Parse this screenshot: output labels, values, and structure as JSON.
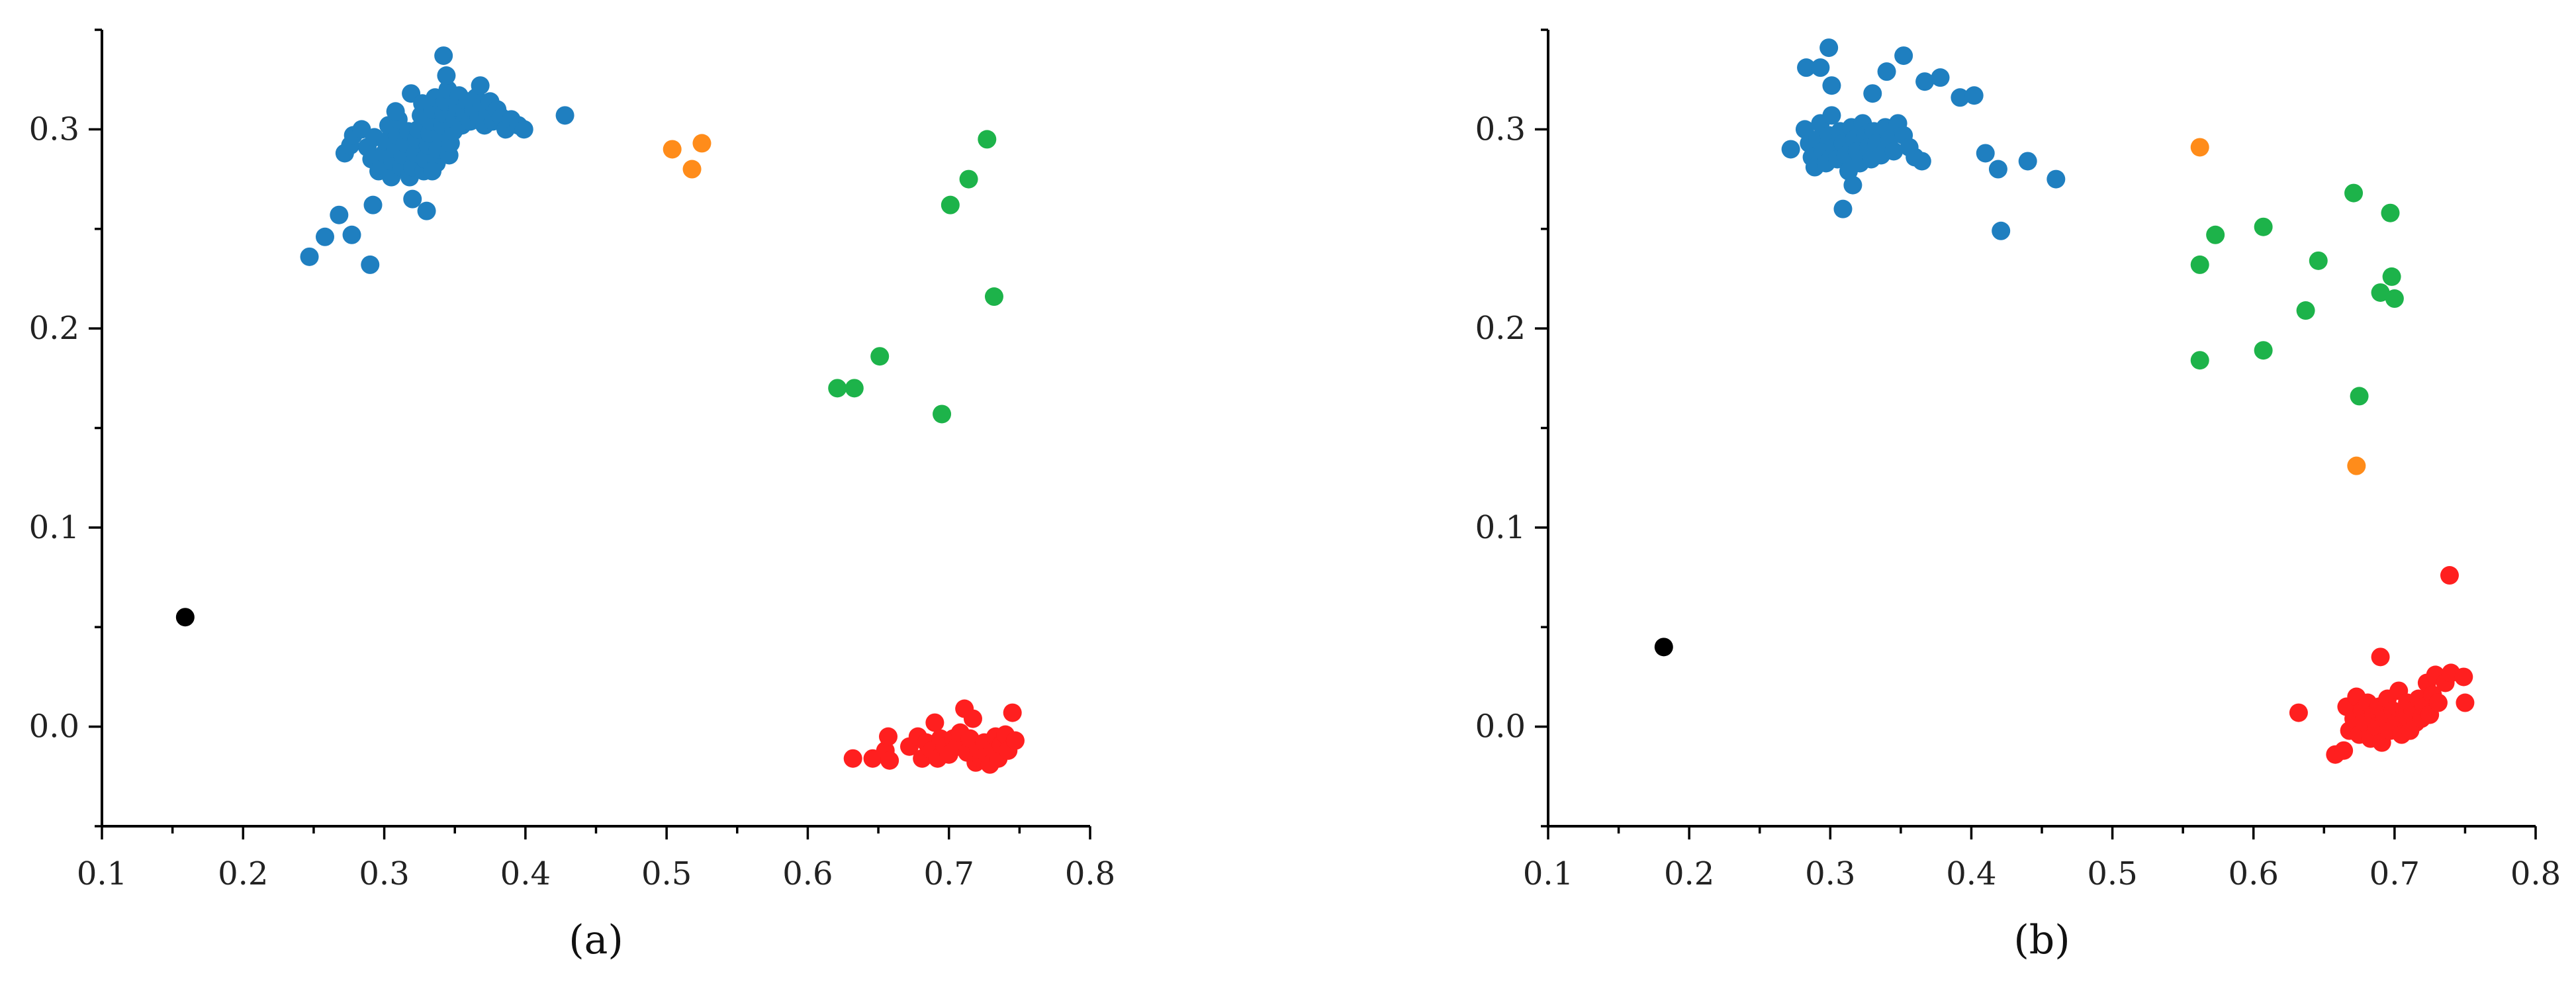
{
  "chart_data": [
    {
      "type": "scatter",
      "panel_label": "(a)",
      "xlim": [
        0.1,
        0.8
      ],
      "ylim": [
        -0.05,
        0.35
      ],
      "x_ticks": [
        "0.1",
        "0.2",
        "0.3",
        "0.4",
        "0.5",
        "0.6",
        "0.7",
        "0.8"
      ],
      "y_ticks": [
        "0.0",
        "0.1",
        "0.2",
        "0.3"
      ],
      "series": [
        {
          "color": "#1f7fc0",
          "points": [
            [
              0.247,
              0.236
            ],
            [
              0.258,
              0.246
            ],
            [
              0.268,
              0.257
            ],
            [
              0.277,
              0.247
            ],
            [
              0.29,
              0.232
            ],
            [
              0.272,
              0.288
            ],
            [
              0.276,
              0.292
            ],
            [
              0.278,
              0.297
            ],
            [
              0.284,
              0.3
            ],
            [
              0.288,
              0.291
            ],
            [
              0.291,
              0.285
            ],
            [
              0.293,
              0.296
            ],
            [
              0.296,
              0.279
            ],
            [
              0.298,
              0.282
            ],
            [
              0.3,
              0.288
            ],
            [
              0.301,
              0.294
            ],
            [
              0.303,
              0.302
            ],
            [
              0.305,
              0.276
            ],
            [
              0.306,
              0.284
            ],
            [
              0.308,
              0.29
            ],
            [
              0.309,
              0.297
            ],
            [
              0.31,
              0.305
            ],
            [
              0.312,
              0.281
            ],
            [
              0.313,
              0.287
            ],
            [
              0.315,
              0.293
            ],
            [
              0.317,
              0.299
            ],
            [
              0.318,
              0.276
            ],
            [
              0.319,
              0.318
            ],
            [
              0.32,
              0.281
            ],
            [
              0.322,
              0.288
            ],
            [
              0.323,
              0.295
            ],
            [
              0.324,
              0.3
            ],
            [
              0.326,
              0.307
            ],
            [
              0.327,
              0.313
            ],
            [
              0.328,
              0.279
            ],
            [
              0.329,
              0.285
            ],
            [
              0.331,
              0.292
            ],
            [
              0.332,
              0.298
            ],
            [
              0.333,
              0.304
            ],
            [
              0.334,
              0.31
            ],
            [
              0.336,
              0.316
            ],
            [
              0.337,
              0.283
            ],
            [
              0.338,
              0.29
            ],
            [
              0.34,
              0.296
            ],
            [
              0.341,
              0.302
            ],
            [
              0.342,
              0.308
            ],
            [
              0.343,
              0.314
            ],
            [
              0.345,
              0.32
            ],
            [
              0.346,
              0.287
            ],
            [
              0.347,
              0.293
            ],
            [
              0.349,
              0.299
            ],
            [
              0.35,
              0.305
            ],
            [
              0.352,
              0.311
            ],
            [
              0.353,
              0.317
            ],
            [
              0.355,
              0.302
            ],
            [
              0.357,
              0.308
            ],
            [
              0.359,
              0.314
            ],
            [
              0.361,
              0.304
            ],
            [
              0.363,
              0.31
            ],
            [
              0.365,
              0.316
            ],
            [
              0.367,
              0.306
            ],
            [
              0.369,
              0.312
            ],
            [
              0.371,
              0.302
            ],
            [
              0.373,
              0.308
            ],
            [
              0.375,
              0.314
            ],
            [
              0.377,
              0.304
            ],
            [
              0.38,
              0.31
            ],
            [
              0.383,
              0.306
            ],
            [
              0.386,
              0.3
            ],
            [
              0.39,
              0.305
            ],
            [
              0.395,
              0.302
            ],
            [
              0.399,
              0.3
            ],
            [
              0.342,
              0.337
            ],
            [
              0.344,
              0.327
            ],
            [
              0.368,
              0.322
            ],
            [
              0.292,
              0.262
            ],
            [
              0.33,
              0.259
            ],
            [
              0.32,
              0.265
            ],
            [
              0.428,
              0.307
            ],
            [
              0.308,
              0.309
            ],
            [
              0.334,
              0.279
            ]
          ]
        },
        {
          "color": "#ff8c1a",
          "points": [
            [
              0.504,
              0.29
            ],
            [
              0.518,
              0.28
            ],
            [
              0.525,
              0.293
            ]
          ]
        },
        {
          "color": "#1db34a",
          "points": [
            [
              0.727,
              0.295
            ],
            [
              0.714,
              0.275
            ],
            [
              0.701,
              0.262
            ],
            [
              0.732,
              0.216
            ],
            [
              0.651,
              0.186
            ],
            [
              0.621,
              0.17
            ],
            [
              0.633,
              0.17
            ],
            [
              0.695,
              0.157
            ]
          ]
        },
        {
          "color": "#ff1f1f",
          "points": [
            [
              0.632,
              -0.016
            ],
            [
              0.646,
              -0.016
            ],
            [
              0.655,
              -0.012
            ],
            [
              0.657,
              -0.005
            ],
            [
              0.658,
              -0.017
            ],
            [
              0.672,
              -0.01
            ],
            [
              0.678,
              -0.005
            ],
            [
              0.681,
              -0.016
            ],
            [
              0.684,
              -0.008
            ],
            [
              0.688,
              -0.012
            ],
            [
              0.69,
              0.002
            ],
            [
              0.692,
              -0.016
            ],
            [
              0.694,
              -0.006
            ],
            [
              0.697,
              -0.01
            ],
            [
              0.7,
              -0.014
            ],
            [
              0.703,
              -0.006
            ],
            [
              0.706,
              -0.01
            ],
            [
              0.708,
              -0.003
            ],
            [
              0.711,
              0.009
            ],
            [
              0.713,
              -0.013
            ],
            [
              0.715,
              -0.006
            ],
            [
              0.717,
              0.004
            ],
            [
              0.719,
              -0.018
            ],
            [
              0.721,
              -0.012
            ],
            [
              0.723,
              -0.016
            ],
            [
              0.725,
              -0.008
            ],
            [
              0.727,
              -0.014
            ],
            [
              0.729,
              -0.019
            ],
            [
              0.731,
              -0.011
            ],
            [
              0.733,
              -0.005
            ],
            [
              0.735,
              -0.016
            ],
            [
              0.737,
              -0.009
            ],
            [
              0.74,
              -0.004
            ],
            [
              0.742,
              -0.012
            ],
            [
              0.745,
              0.007
            ],
            [
              0.747,
              -0.007
            ]
          ]
        },
        {
          "color": "#000000",
          "points": [
            [
              0.159,
              0.055
            ]
          ]
        }
      ]
    },
    {
      "type": "scatter",
      "panel_label": "(b)",
      "xlim": [
        0.1,
        0.8
      ],
      "ylim": [
        -0.05,
        0.35
      ],
      "x_ticks": [
        "0.1",
        "0.2",
        "0.3",
        "0.4",
        "0.5",
        "0.6",
        "0.7",
        "0.8"
      ],
      "y_ticks": [
        "0.0",
        "0.1",
        "0.2",
        "0.3"
      ],
      "series": [
        {
          "color": "#1f7fc0",
          "points": [
            [
              0.299,
              0.341
            ],
            [
              0.283,
              0.331
            ],
            [
              0.293,
              0.331
            ],
            [
              0.301,
              0.322
            ],
            [
              0.352,
              0.337
            ],
            [
              0.34,
              0.329
            ],
            [
              0.33,
              0.318
            ],
            [
              0.367,
              0.324
            ],
            [
              0.378,
              0.326
            ],
            [
              0.392,
              0.316
            ],
            [
              0.402,
              0.317
            ],
            [
              0.272,
              0.29
            ],
            [
              0.282,
              0.3
            ],
            [
              0.285,
              0.293
            ],
            [
              0.287,
              0.286
            ],
            [
              0.289,
              0.281
            ],
            [
              0.291,
              0.295
            ],
            [
              0.293,
              0.303
            ],
            [
              0.295,
              0.289
            ],
            [
              0.297,
              0.283
            ],
            [
              0.299,
              0.297
            ],
            [
              0.301,
              0.307
            ],
            [
              0.303,
              0.291
            ],
            [
              0.305,
              0.285
            ],
            [
              0.307,
              0.299
            ],
            [
              0.309,
              0.293
            ],
            [
              0.311,
              0.287
            ],
            [
              0.313,
              0.279
            ],
            [
              0.315,
              0.301
            ],
            [
              0.317,
              0.295
            ],
            [
              0.319,
              0.289
            ],
            [
              0.321,
              0.283
            ],
            [
              0.323,
              0.303
            ],
            [
              0.325,
              0.297
            ],
            [
              0.327,
              0.291
            ],
            [
              0.329,
              0.285
            ],
            [
              0.331,
              0.299
            ],
            [
              0.333,
              0.293
            ],
            [
              0.336,
              0.287
            ],
            [
              0.339,
              0.301
            ],
            [
              0.342,
              0.295
            ],
            [
              0.345,
              0.289
            ],
            [
              0.348,
              0.303
            ],
            [
              0.352,
              0.297
            ],
            [
              0.356,
              0.291
            ],
            [
              0.36,
              0.286
            ],
            [
              0.365,
              0.284
            ],
            [
              0.316,
              0.272
            ],
            [
              0.309,
              0.26
            ],
            [
              0.41,
              0.288
            ],
            [
              0.419,
              0.28
            ],
            [
              0.44,
              0.284
            ],
            [
              0.46,
              0.275
            ],
            [
              0.421,
              0.249
            ]
          ]
        },
        {
          "color": "#ff8c1a",
          "points": [
            [
              0.562,
              0.291
            ],
            [
              0.673,
              0.131
            ]
          ]
        },
        {
          "color": "#1db34a",
          "points": [
            [
              0.671,
              0.268
            ],
            [
              0.697,
              0.258
            ],
            [
              0.607,
              0.251
            ],
            [
              0.573,
              0.247
            ],
            [
              0.646,
              0.234
            ],
            [
              0.562,
              0.232
            ],
            [
              0.698,
              0.226
            ],
            [
              0.69,
              0.218
            ],
            [
              0.7,
              0.215
            ],
            [
              0.637,
              0.209
            ],
            [
              0.607,
              0.189
            ],
            [
              0.562,
              0.184
            ],
            [
              0.675,
              0.166
            ]
          ]
        },
        {
          "color": "#ff1f1f",
          "points": [
            [
              0.739,
              0.076
            ],
            [
              0.69,
              0.035
            ],
            [
              0.632,
              0.007
            ],
            [
              0.658,
              -0.014
            ],
            [
              0.664,
              -0.012
            ],
            [
              0.666,
              0.01
            ],
            [
              0.668,
              -0.002
            ],
            [
              0.671,
              0.004
            ],
            [
              0.673,
              0.015
            ],
            [
              0.675,
              -0.004
            ],
            [
              0.677,
              0.008
            ],
            [
              0.679,
              0.002
            ],
            [
              0.681,
              0.012
            ],
            [
              0.683,
              -0.006
            ],
            [
              0.685,
              0.006
            ],
            [
              0.687,
              0.0
            ],
            [
              0.689,
              0.01
            ],
            [
              0.691,
              -0.008
            ],
            [
              0.693,
              0.004
            ],
            [
              0.695,
              0.014
            ],
            [
              0.697,
              -0.002
            ],
            [
              0.699,
              0.008
            ],
            [
              0.701,
              0.002
            ],
            [
              0.703,
              0.018
            ],
            [
              0.705,
              -0.004
            ],
            [
              0.707,
              0.006
            ],
            [
              0.709,
              0.012
            ],
            [
              0.711,
              -0.002
            ],
            [
              0.713,
              0.008
            ],
            [
              0.715,
              0.002
            ],
            [
              0.717,
              0.014
            ],
            [
              0.719,
              0.004
            ],
            [
              0.721,
              0.01
            ],
            [
              0.723,
              0.022
            ],
            [
              0.725,
              0.006
            ],
            [
              0.727,
              0.016
            ],
            [
              0.729,
              0.026
            ],
            [
              0.731,
              0.012
            ],
            [
              0.736,
              0.022
            ],
            [
              0.74,
              0.027
            ],
            [
              0.749,
              0.025
            ],
            [
              0.75,
              0.012
            ]
          ]
        },
        {
          "color": "#000000",
          "points": [
            [
              0.182,
              0.04
            ]
          ]
        }
      ]
    }
  ]
}
